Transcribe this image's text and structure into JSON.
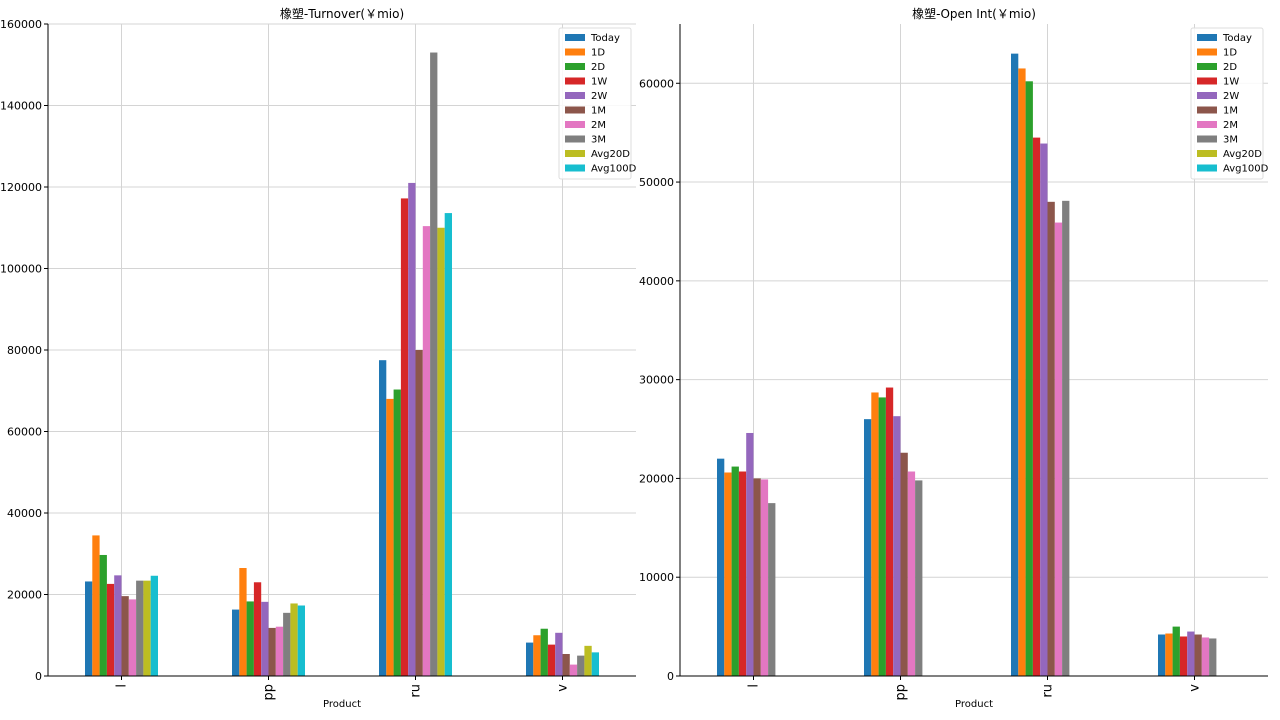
{
  "chart_data": [
    {
      "type": "bar",
      "title": "橡塑-Turnover(￥mio)",
      "xlabel": "Product",
      "ylabel": "",
      "categories": [
        "l",
        "pp",
        "ru",
        "v"
      ],
      "ylim": [
        0,
        160000
      ],
      "yticks": [
        0,
        20000,
        40000,
        60000,
        80000,
        100000,
        120000,
        140000,
        160000
      ],
      "grid": true,
      "legend_position": "top-right",
      "series": [
        {
          "name": "Today",
          "color": "#1f77b4",
          "values": [
            23200,
            16300,
            77500,
            8200
          ]
        },
        {
          "name": "1D",
          "color": "#ff7f0e",
          "values": [
            34500,
            26500,
            68000,
            10000
          ]
        },
        {
          "name": "2D",
          "color": "#2ca02c",
          "values": [
            29700,
            18300,
            70300,
            11600
          ]
        },
        {
          "name": "1W",
          "color": "#d62728",
          "values": [
            22600,
            23000,
            117200,
            7700
          ]
        },
        {
          "name": "2W",
          "color": "#9467bd",
          "values": [
            24700,
            18200,
            121000,
            10600
          ]
        },
        {
          "name": "1M",
          "color": "#8c564b",
          "values": [
            19600,
            11800,
            80000,
            5400
          ]
        },
        {
          "name": "2M",
          "color": "#e377c2",
          "values": [
            18800,
            12100,
            110400,
            2800
          ]
        },
        {
          "name": "3M",
          "color": "#7f7f7f",
          "values": [
            23400,
            15500,
            153000,
            5000
          ]
        },
        {
          "name": "Avg20D",
          "color": "#bcbd22",
          "values": [
            23400,
            17800,
            110000,
            7400
          ]
        },
        {
          "name": "Avg100D",
          "color": "#17becf",
          "values": [
            24600,
            17300,
            113600,
            5800
          ]
        }
      ]
    },
    {
      "type": "bar",
      "title": "橡塑-Open Int(￥mio)",
      "xlabel": "Product",
      "ylabel": "",
      "categories": [
        "l",
        "pp",
        "ru",
        "v"
      ],
      "ylim": [
        0,
        66000
      ],
      "yticks": [
        0,
        10000,
        20000,
        30000,
        40000,
        50000,
        60000
      ],
      "grid": true,
      "legend_position": "top-right",
      "series": [
        {
          "name": "Today",
          "color": "#1f77b4",
          "values": [
            22000,
            26000,
            63000,
            4200
          ]
        },
        {
          "name": "1D",
          "color": "#ff7f0e",
          "values": [
            20600,
            28700,
            61500,
            4300
          ]
        },
        {
          "name": "2D",
          "color": "#2ca02c",
          "values": [
            21200,
            28200,
            60200,
            5000
          ]
        },
        {
          "name": "1W",
          "color": "#d62728",
          "values": [
            20700,
            29200,
            54500,
            4000
          ]
        },
        {
          "name": "2W",
          "color": "#9467bd",
          "values": [
            24600,
            26300,
            53900,
            4500
          ]
        },
        {
          "name": "1M",
          "color": "#8c564b",
          "values": [
            20000,
            22600,
            48000,
            4200
          ]
        },
        {
          "name": "2M",
          "color": "#e377c2",
          "values": [
            19900,
            20700,
            45900,
            3900
          ]
        },
        {
          "name": "3M",
          "color": "#7f7f7f",
          "values": [
            17500,
            19800,
            48100,
            3800
          ]
        },
        {
          "name": "Avg20D",
          "color": "#bcbd22",
          "values": [
            null,
            null,
            null,
            null
          ]
        },
        {
          "name": "Avg100D",
          "color": "#17becf",
          "values": [
            null,
            null,
            null,
            null
          ]
        }
      ]
    }
  ]
}
